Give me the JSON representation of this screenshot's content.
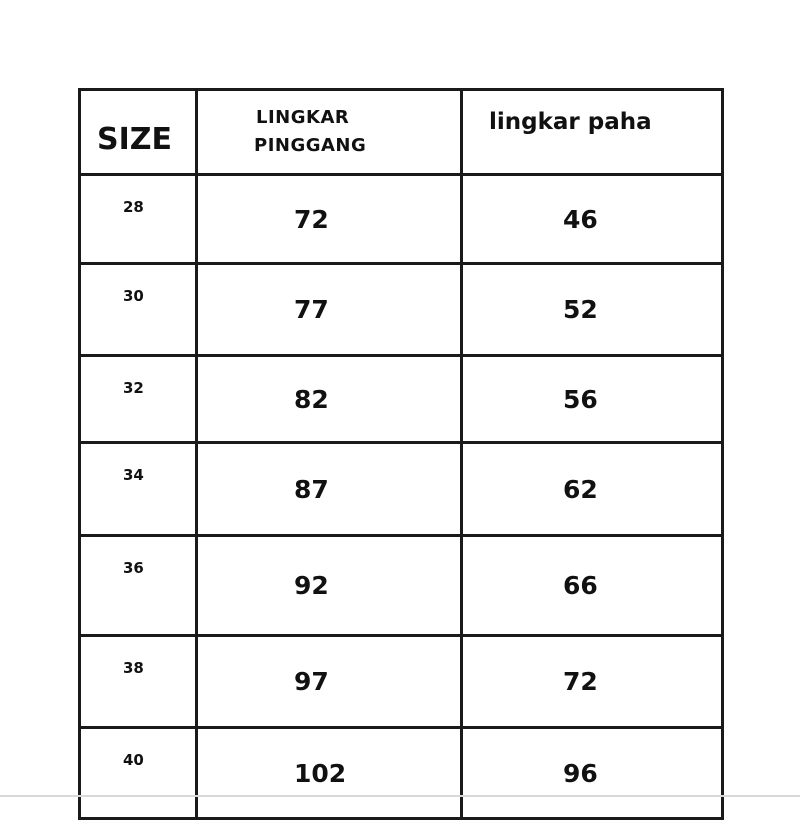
{
  "table": {
    "headers": [
      "SIZE",
      "LINGKAR PINGGANG",
      "lingkar paha"
    ],
    "header_lines": {
      "col1_line1": "LINGKAR",
      "col1_line2": "PINGGANG"
    },
    "rows": [
      [
        "28",
        "72",
        "46"
      ],
      [
        "30",
        "77",
        "52"
      ],
      [
        "32",
        "82",
        "56"
      ],
      [
        "34",
        "87",
        "62"
      ],
      [
        "36",
        "92",
        "66"
      ],
      [
        "38",
        "97",
        "72"
      ],
      [
        "40",
        "102",
        "96"
      ]
    ]
  }
}
